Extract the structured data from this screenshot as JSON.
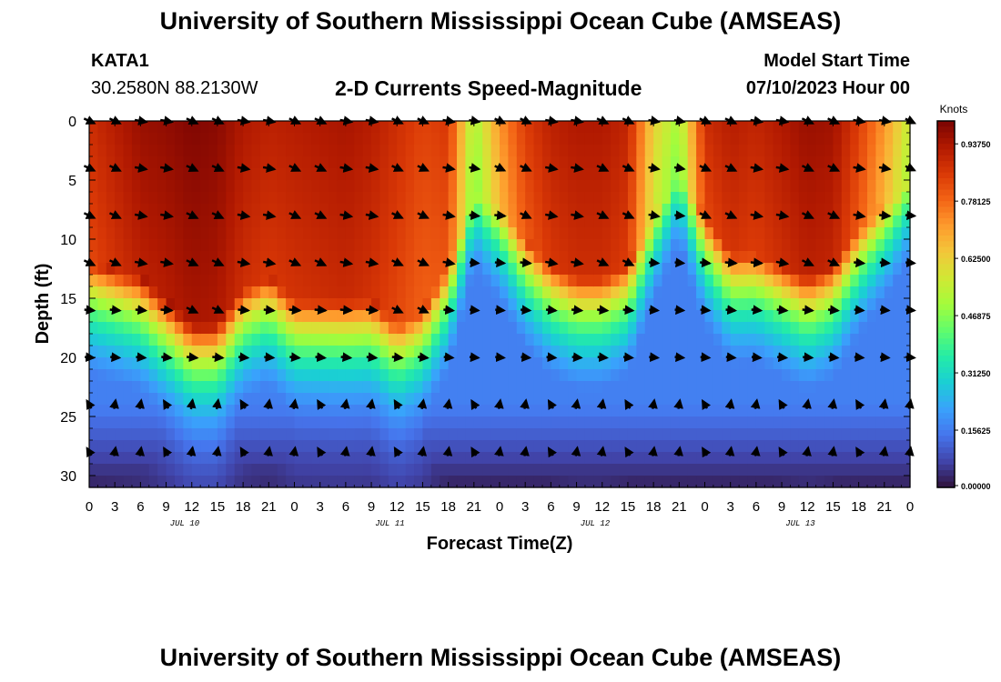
{
  "page": {
    "title_top": "University of Southern Mississippi Ocean Cube (AMSEAS)",
    "title_bottom": "University of Southern Mississippi Ocean Cube (AMSEAS)",
    "station": {
      "id": "KATA1",
      "coords": "30.2580N  88.2130W"
    },
    "subtitle": "2-D Currents Speed-Magnitude",
    "model_start": {
      "label": "Model Start Time",
      "value": "07/10/2023 Hour 00"
    }
  },
  "chart_data": {
    "type": "heatmap",
    "title": "2-D Currents Speed-Magnitude",
    "xlabel": "Forecast Time(Z)",
    "ylabel": "Depth (ft)",
    "x_range_hours": [
      0,
      96
    ],
    "y_range_ft": [
      0,
      31
    ],
    "y_ticks": [
      "0",
      "5",
      "10",
      "15",
      "20",
      "25",
      "30"
    ],
    "x_tick_labels": [
      "0",
      "3",
      "6",
      "9",
      "12",
      "15",
      "18",
      "21",
      "0",
      "3",
      "6",
      "9",
      "12",
      "15",
      "18",
      "21",
      "0",
      "3",
      "6",
      "9",
      "12",
      "15",
      "18",
      "21",
      "0",
      "3",
      "6",
      "9",
      "12",
      "15",
      "18",
      "21",
      "0"
    ],
    "date_labels": [
      "JUL 10",
      "JUL 11",
      "JUL 12",
      "JUL 13"
    ],
    "colorbar": {
      "label": "Knots",
      "min": 0.0,
      "max": 1.0,
      "ticks": [
        "0.00000",
        "0.15625",
        "0.31250",
        "0.46875",
        "0.62500",
        "0.78125",
        "0.93750"
      ]
    },
    "speed_profile": {
      "times_h": [
        0,
        6,
        9,
        12,
        15,
        18,
        21,
        24,
        27,
        30,
        33,
        36,
        39,
        42,
        45,
        48,
        51,
        54,
        57,
        60,
        63,
        66,
        69,
        72,
        75,
        78,
        81,
        84,
        87,
        90,
        93,
        96
      ],
      "surface_kn": [
        0.88,
        0.96,
        0.97,
        0.99,
        0.98,
        0.93,
        0.91,
        0.92,
        0.93,
        0.94,
        0.92,
        0.88,
        0.84,
        0.86,
        0.5,
        0.72,
        0.85,
        0.91,
        0.93,
        0.93,
        0.9,
        0.62,
        0.5,
        0.88,
        0.92,
        0.9,
        0.93,
        0.96,
        0.95,
        0.85,
        0.72,
        0.55
      ],
      "mixed_depth_ft": [
        12,
        13,
        15,
        17,
        17,
        14,
        13,
        15,
        15,
        15,
        15,
        17,
        16,
        12,
        6,
        7,
        10,
        12,
        13,
        13,
        12,
        8,
        4,
        8,
        11,
        11,
        12,
        13,
        12,
        9,
        7,
        5
      ]
    },
    "arrow_depths_ft": [
      0,
      4,
      8,
      12,
      16,
      20,
      24,
      28
    ],
    "arrow_times_h": [
      0,
      3,
      6,
      9,
      12,
      15,
      18,
      21,
      24,
      27,
      30,
      33,
      36,
      39,
      42,
      45,
      48,
      51,
      54,
      57,
      60,
      63,
      66,
      69,
      72,
      75,
      78,
      81,
      84,
      87,
      90,
      93,
      96
    ]
  },
  "colors": {
    "scale": [
      "#30123b",
      "#4145ab",
      "#4675ed",
      "#39a2fc",
      "#1bcfd4",
      "#24eca6",
      "#61fc6c",
      "#a4fc3b",
      "#d1e834",
      "#f3c63a",
      "#fe9b2d",
      "#f36315",
      "#d93806",
      "#b11901",
      "#7a0402"
    ]
  }
}
